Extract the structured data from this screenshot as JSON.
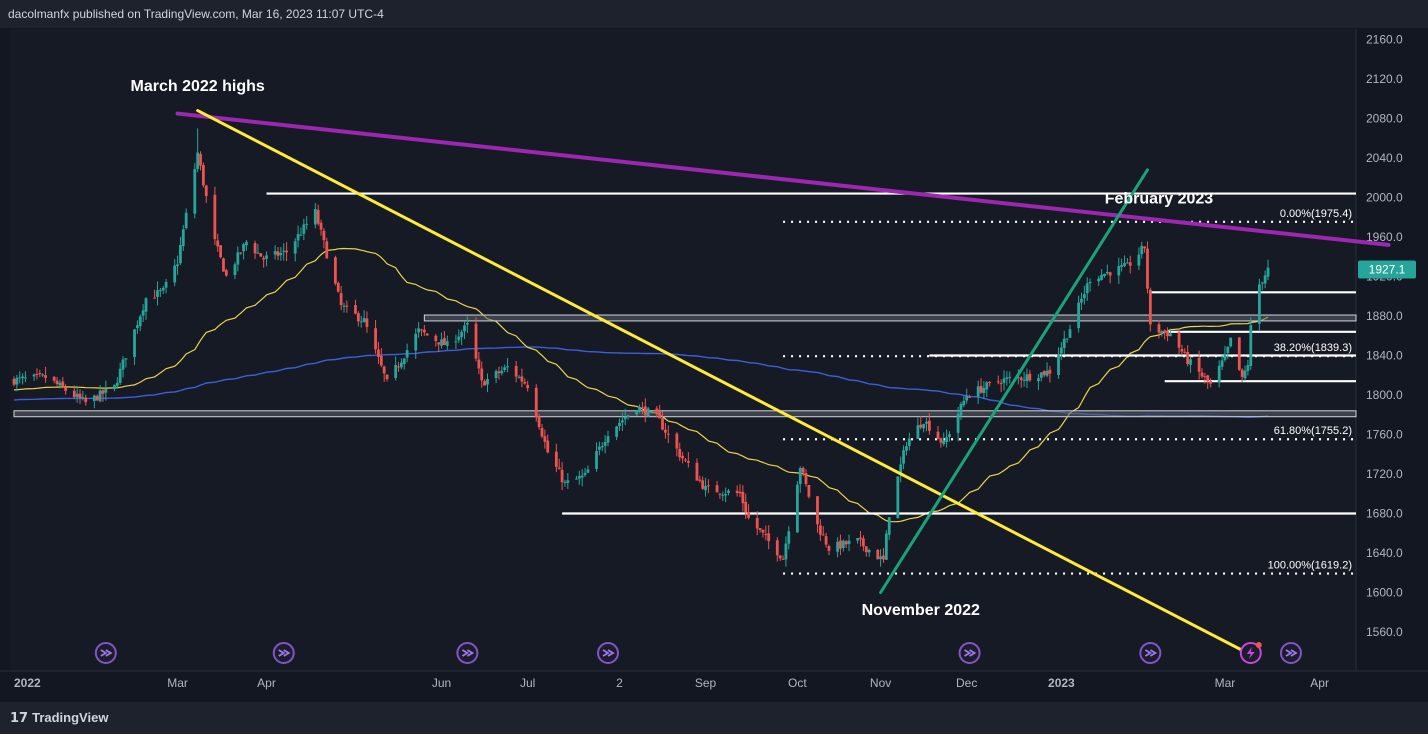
{
  "header": {
    "published_by": "dacolmanfx published on TradingView.com, Mar 16, 2023 11:07 UTC-4"
  },
  "footer": {
    "brand": "TradingView",
    "brand_mark": "17"
  },
  "price_badge": {
    "value": "1927.1",
    "color": "#26a69a"
  },
  "colors": {
    "up": "#26a69a",
    "down": "#ef5350",
    "sma50": "#e8d44d",
    "sma200": "#3c5fd9",
    "resistance_line": "#9c27b0",
    "down_trendline": "#ffeb3b",
    "up_trendline": "#1aa37a",
    "level_line": "#ffffff",
    "zone_fill": "#5d606b"
  },
  "chart_data": {
    "type": "candlestick",
    "instrument": "Gold (XAU/USD), daily",
    "y_axis": {
      "ticks": [
        1560,
        1600,
        1640,
        1680,
        1720,
        1760,
        1800,
        1840,
        1880,
        1920,
        1960,
        2000,
        2040,
        2080,
        2120,
        2160
      ],
      "ylim": [
        1536,
        2168
      ],
      "tick_format": "one_decimal"
    },
    "x_axis": {
      "tick_labels": [
        "2022",
        "Mar",
        "Apr",
        "Jun",
        "Jul",
        "2",
        "Sep",
        "Oct",
        "Nov",
        "Dec",
        "2023",
        "Mar",
        "Apr"
      ],
      "bold_labels": [
        "2022",
        "2023"
      ]
    },
    "range": {
      "start": "2022-01-03",
      "end": "2023-03-16"
    },
    "anchors": [
      {
        "date": "2022-01-03",
        "price": 1815
      },
      {
        "date": "2022-01-14",
        "price": 1818
      },
      {
        "date": "2022-01-28",
        "price": 1792
      },
      {
        "date": "2022-02-07",
        "price": 1808
      },
      {
        "date": "2022-02-18",
        "price": 1898
      },
      {
        "date": "2022-02-24",
        "price": 1905
      },
      {
        "date": "2022-03-01",
        "price": 1935
      },
      {
        "date": "2022-03-08",
        "price": 2045
      },
      {
        "date": "2022-03-14",
        "price": 1955
      },
      {
        "date": "2022-03-18",
        "price": 1920
      },
      {
        "date": "2022-03-25",
        "price": 1955
      },
      {
        "date": "2022-03-31",
        "price": 1938
      },
      {
        "date": "2022-04-08",
        "price": 1945
      },
      {
        "date": "2022-04-18",
        "price": 1985
      },
      {
        "date": "2022-04-27",
        "price": 1890
      },
      {
        "date": "2022-05-05",
        "price": 1875
      },
      {
        "date": "2022-05-13",
        "price": 1812
      },
      {
        "date": "2022-05-24",
        "price": 1865
      },
      {
        "date": "2022-06-03",
        "price": 1850
      },
      {
        "date": "2022-06-10",
        "price": 1870
      },
      {
        "date": "2022-06-15",
        "price": 1812
      },
      {
        "date": "2022-06-24",
        "price": 1828
      },
      {
        "date": "2022-07-01",
        "price": 1810
      },
      {
        "date": "2022-07-08",
        "price": 1742
      },
      {
        "date": "2022-07-14",
        "price": 1710
      },
      {
        "date": "2022-07-21",
        "price": 1718
      },
      {
        "date": "2022-07-29",
        "price": 1762
      },
      {
        "date": "2022-08-08",
        "price": 1788
      },
      {
        "date": "2022-08-15",
        "price": 1778
      },
      {
        "date": "2022-08-23",
        "price": 1740
      },
      {
        "date": "2022-09-01",
        "price": 1705
      },
      {
        "date": "2022-09-13",
        "price": 1700
      },
      {
        "date": "2022-09-16",
        "price": 1675
      },
      {
        "date": "2022-09-28",
        "price": 1635
      },
      {
        "date": "2022-10-04",
        "price": 1728
      },
      {
        "date": "2022-10-10",
        "price": 1668
      },
      {
        "date": "2022-10-14",
        "price": 1645
      },
      {
        "date": "2022-10-24",
        "price": 1652
      },
      {
        "date": "2022-11-02",
        "price": 1632
      },
      {
        "date": "2022-11-04",
        "price": 1680
      },
      {
        "date": "2022-11-10",
        "price": 1752
      },
      {
        "date": "2022-11-16",
        "price": 1775
      },
      {
        "date": "2022-11-23",
        "price": 1750
      },
      {
        "date": "2022-12-01",
        "price": 1800
      },
      {
        "date": "2022-12-13",
        "price": 1815
      },
      {
        "date": "2022-12-21",
        "price": 1818
      },
      {
        "date": "2022-12-30",
        "price": 1824
      },
      {
        "date": "2023-01-06",
        "price": 1868
      },
      {
        "date": "2023-01-13",
        "price": 1918
      },
      {
        "date": "2023-01-20",
        "price": 1925
      },
      {
        "date": "2023-01-26",
        "price": 1930
      },
      {
        "date": "2023-02-01",
        "price": 1950
      },
      {
        "date": "2023-02-03",
        "price": 1868
      },
      {
        "date": "2023-02-10",
        "price": 1862
      },
      {
        "date": "2023-02-16",
        "price": 1835
      },
      {
        "date": "2023-02-24",
        "price": 1810
      },
      {
        "date": "2023-03-01",
        "price": 1838
      },
      {
        "date": "2023-03-03",
        "price": 1855
      },
      {
        "date": "2023-03-07",
        "price": 1815
      },
      {
        "date": "2023-03-09",
        "price": 1832
      },
      {
        "date": "2023-03-10",
        "price": 1868
      },
      {
        "date": "2023-03-13",
        "price": 1912
      },
      {
        "date": "2023-03-16",
        "price": 1927.1
      }
    ],
    "wick_spikes": [
      {
        "date": "2022-03-08",
        "high": 2070
      }
    ],
    "indicators": [
      {
        "type": "sma",
        "period": 50,
        "color": "#e8d44d"
      },
      {
        "type": "sma",
        "period": 200,
        "color": "#3c5fd9"
      }
    ],
    "trendlines": [
      {
        "role": "resistance",
        "color": "#9c27b0",
        "from": {
          "date": "2022-03-01",
          "price": 2085
        },
        "to": {
          "date": "2023-04-27",
          "price": 1952
        }
      },
      {
        "role": "downtrend",
        "color": "#ffeb3b",
        "from": {
          "date": "2022-03-08",
          "price": 2088
        },
        "to": {
          "date": "2023-03-08",
          "price": 1540
        }
      },
      {
        "role": "uptrend",
        "color": "#1aa37a",
        "from": {
          "date": "2022-11-01",
          "price": 1600
        },
        "to": {
          "date": "2023-02-02",
          "price": 2028
        }
      }
    ],
    "horizontal_levels": [
      {
        "price": 2004,
        "from": "2022-04-01",
        "to": "2023-04-28",
        "style": "solid"
      },
      {
        "price": 1904,
        "from": "2023-02-03",
        "to": "2023-04-28",
        "style": "solid"
      },
      {
        "price": 1864,
        "from": "2023-02-09",
        "to": "2023-04-28",
        "style": "solid"
      },
      {
        "price": 1840,
        "from": "2022-11-18",
        "to": "2023-04-28",
        "style": "solid"
      },
      {
        "price": 1814,
        "from": "2023-02-08",
        "to": "2023-04-28",
        "style": "solid"
      },
      {
        "price": 1680,
        "from": "2022-07-13",
        "to": "2023-04-28",
        "style": "solid"
      }
    ],
    "zones": [
      {
        "low": 1875,
        "high": 1881,
        "from": "2022-05-26",
        "to": "2023-04-28"
      },
      {
        "low": 1778,
        "high": 1784,
        "from": "2022-01-03",
        "to": "2023-04-28"
      }
    ],
    "fibonacci": {
      "from": "2022-09-28",
      "to": "2023-04-28",
      "levels": [
        {
          "label": "0.00%(1975.4)",
          "price": 1975.4
        },
        {
          "label": "38.20%(1839.3)",
          "price": 1839.3
        },
        {
          "label": "61.80%(1755.2)",
          "price": 1755.2
        },
        {
          "label": "100.00%(1619.2)",
          "price": 1619.2
        }
      ]
    },
    "annotations": [
      {
        "text": "March 2022 highs",
        "date": "2022-03-08",
        "price": 2108
      },
      {
        "text": "February 2023",
        "date": "2023-02-06",
        "price": 1994
      },
      {
        "text": "November 2022",
        "date": "2022-11-15",
        "price": 1577
      }
    ],
    "event_markers": [
      "2022-02-04",
      "2022-04-07",
      "2022-06-10",
      "2022-07-29",
      "2022-12-02",
      "2023-02-03",
      "2023-03-10",
      "2023-03-24"
    ],
    "event_marker_highlighted": "2023-03-10",
    "last_price": 1927.1
  }
}
